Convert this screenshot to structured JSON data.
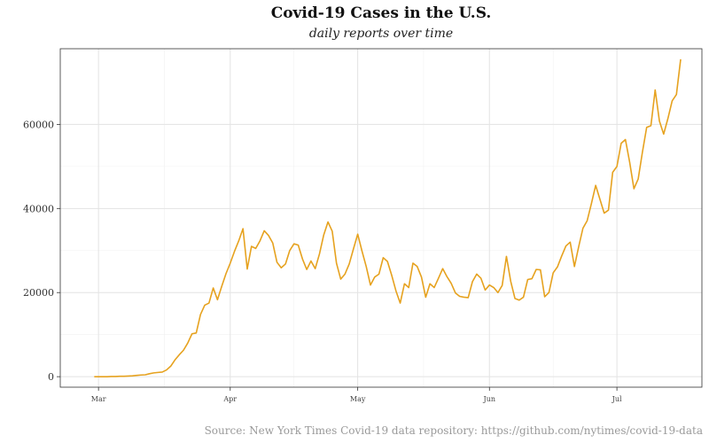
{
  "chart_data": {
    "type": "line",
    "title": "Covid-19 Cases in the U.S.",
    "subtitle": "daily reports over time",
    "caption": "Source: New York Times Covid-19 data repository: https://github.com/nytimes/covid-19-data",
    "xlabel": "",
    "ylabel": "",
    "x_start": "2020-02-29",
    "x_end": "2020-07-17",
    "xlim": [
      "2020-02-21",
      "2020-07-21"
    ],
    "ylim": [
      -2500,
      78000
    ],
    "x_ticks": [
      {
        "date": "2020-03-01",
        "label": "Mar"
      },
      {
        "date": "2020-04-01",
        "label": "Apr"
      },
      {
        "date": "2020-05-01",
        "label": "May"
      },
      {
        "date": "2020-06-01",
        "label": "Jun"
      },
      {
        "date": "2020-07-01",
        "label": "Jul"
      }
    ],
    "y_ticks": [
      {
        "value": 0,
        "label": "0"
      },
      {
        "value": 20000,
        "label": "20000"
      },
      {
        "value": 40000,
        "label": "40000"
      },
      {
        "value": 60000,
        "label": "60000"
      }
    ],
    "grid": true,
    "legend": "none",
    "color": "#E6A21F",
    "series": [
      {
        "values": [
          0,
          0,
          0,
          0,
          50,
          50,
          100,
          100,
          150,
          200,
          300,
          400,
          450,
          700,
          900,
          1000,
          1100,
          1600,
          2500,
          4000,
          5200,
          6300,
          8000,
          10200,
          10400,
          14800,
          17000,
          17500,
          21100,
          18300,
          21500,
          24500,
          27000,
          29800,
          32300,
          35200,
          25600,
          31000,
          30500,
          32300,
          34700,
          33600,
          31800,
          27200,
          25900,
          26800,
          30000,
          31600,
          31300,
          28000,
          25500,
          27500,
          25700,
          29200,
          33700,
          36800,
          34600,
          27000,
          23200,
          24400,
          26800,
          30400,
          33900,
          29900,
          26200,
          21800,
          23700,
          24400,
          28300,
          27400,
          24100,
          20400,
          17500,
          22100,
          21200,
          27000,
          26200,
          23700,
          18900,
          22100,
          21200,
          23400,
          25700,
          23800,
          22200,
          19900,
          19100,
          18900,
          18800,
          22600,
          24400,
          23400,
          20600,
          21800,
          21200,
          20000,
          21700,
          28600,
          22700,
          18600,
          18200,
          18900,
          23100,
          23300,
          25500,
          25400,
          19000,
          20000,
          24700,
          26100,
          28700,
          31100,
          32000,
          26200,
          30900,
          35300,
          37100,
          41200,
          45500,
          42200,
          38900,
          39600,
          48600,
          50000,
          55500,
          56400,
          51000,
          44700,
          47000,
          53400,
          59300,
          59700,
          68200,
          60800,
          57700,
          61400,
          65600,
          67100,
          75500
        ]
      }
    ]
  }
}
